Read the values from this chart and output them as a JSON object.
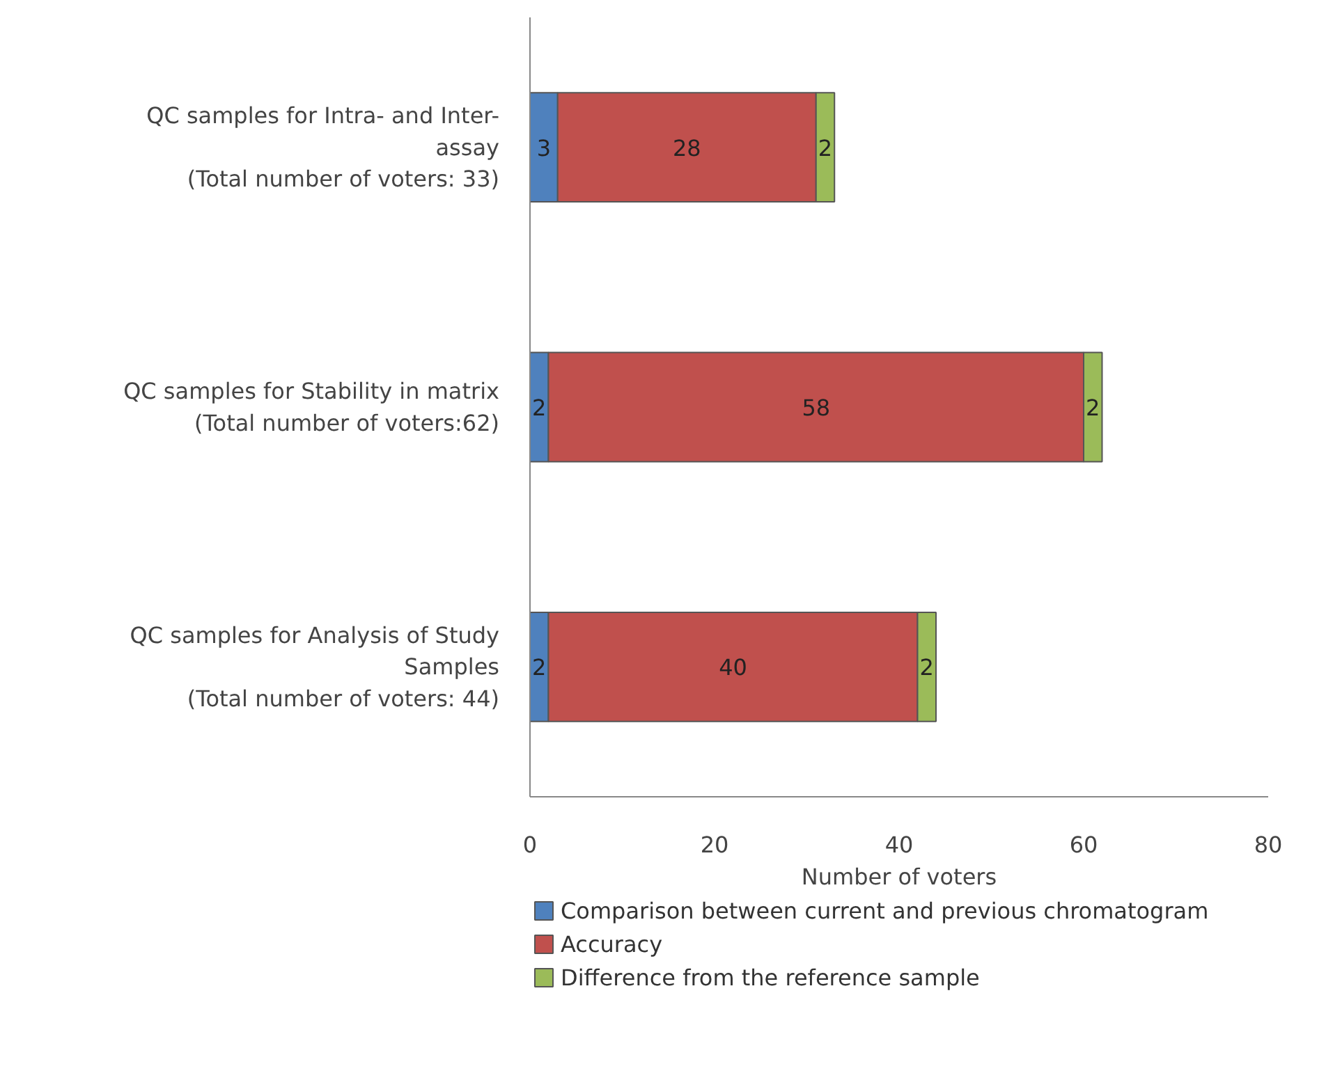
{
  "chart_data": {
    "type": "bar",
    "orientation": "horizontal",
    "stacked": true,
    "categories": [
      "QC samples for Intra- and Inter-\nassay\n(Total number of voters: 33)",
      "QC samples for Stability in matrix\n(Total number of voters:62)",
      "QC samples for Analysis of Study\nSamples\n(Total number of voters: 44)"
    ],
    "series": [
      {
        "name": "Comparison between current and previous chromatogram",
        "color": "#4f81bd",
        "values": [
          3,
          2,
          2
        ]
      },
      {
        "name": "Accuracy",
        "color": "#c0504d",
        "values": [
          28,
          58,
          40
        ]
      },
      {
        "name": "Difference from the reference sample",
        "color": "#9bbb59",
        "values": [
          2,
          2,
          2
        ]
      }
    ],
    "xlabel": "Number of voters",
    "xlim": [
      0,
      80
    ],
    "xticks": [
      0,
      20,
      40,
      60,
      80
    ],
    "data_labels": true,
    "grid": false,
    "legend": "bottom"
  }
}
